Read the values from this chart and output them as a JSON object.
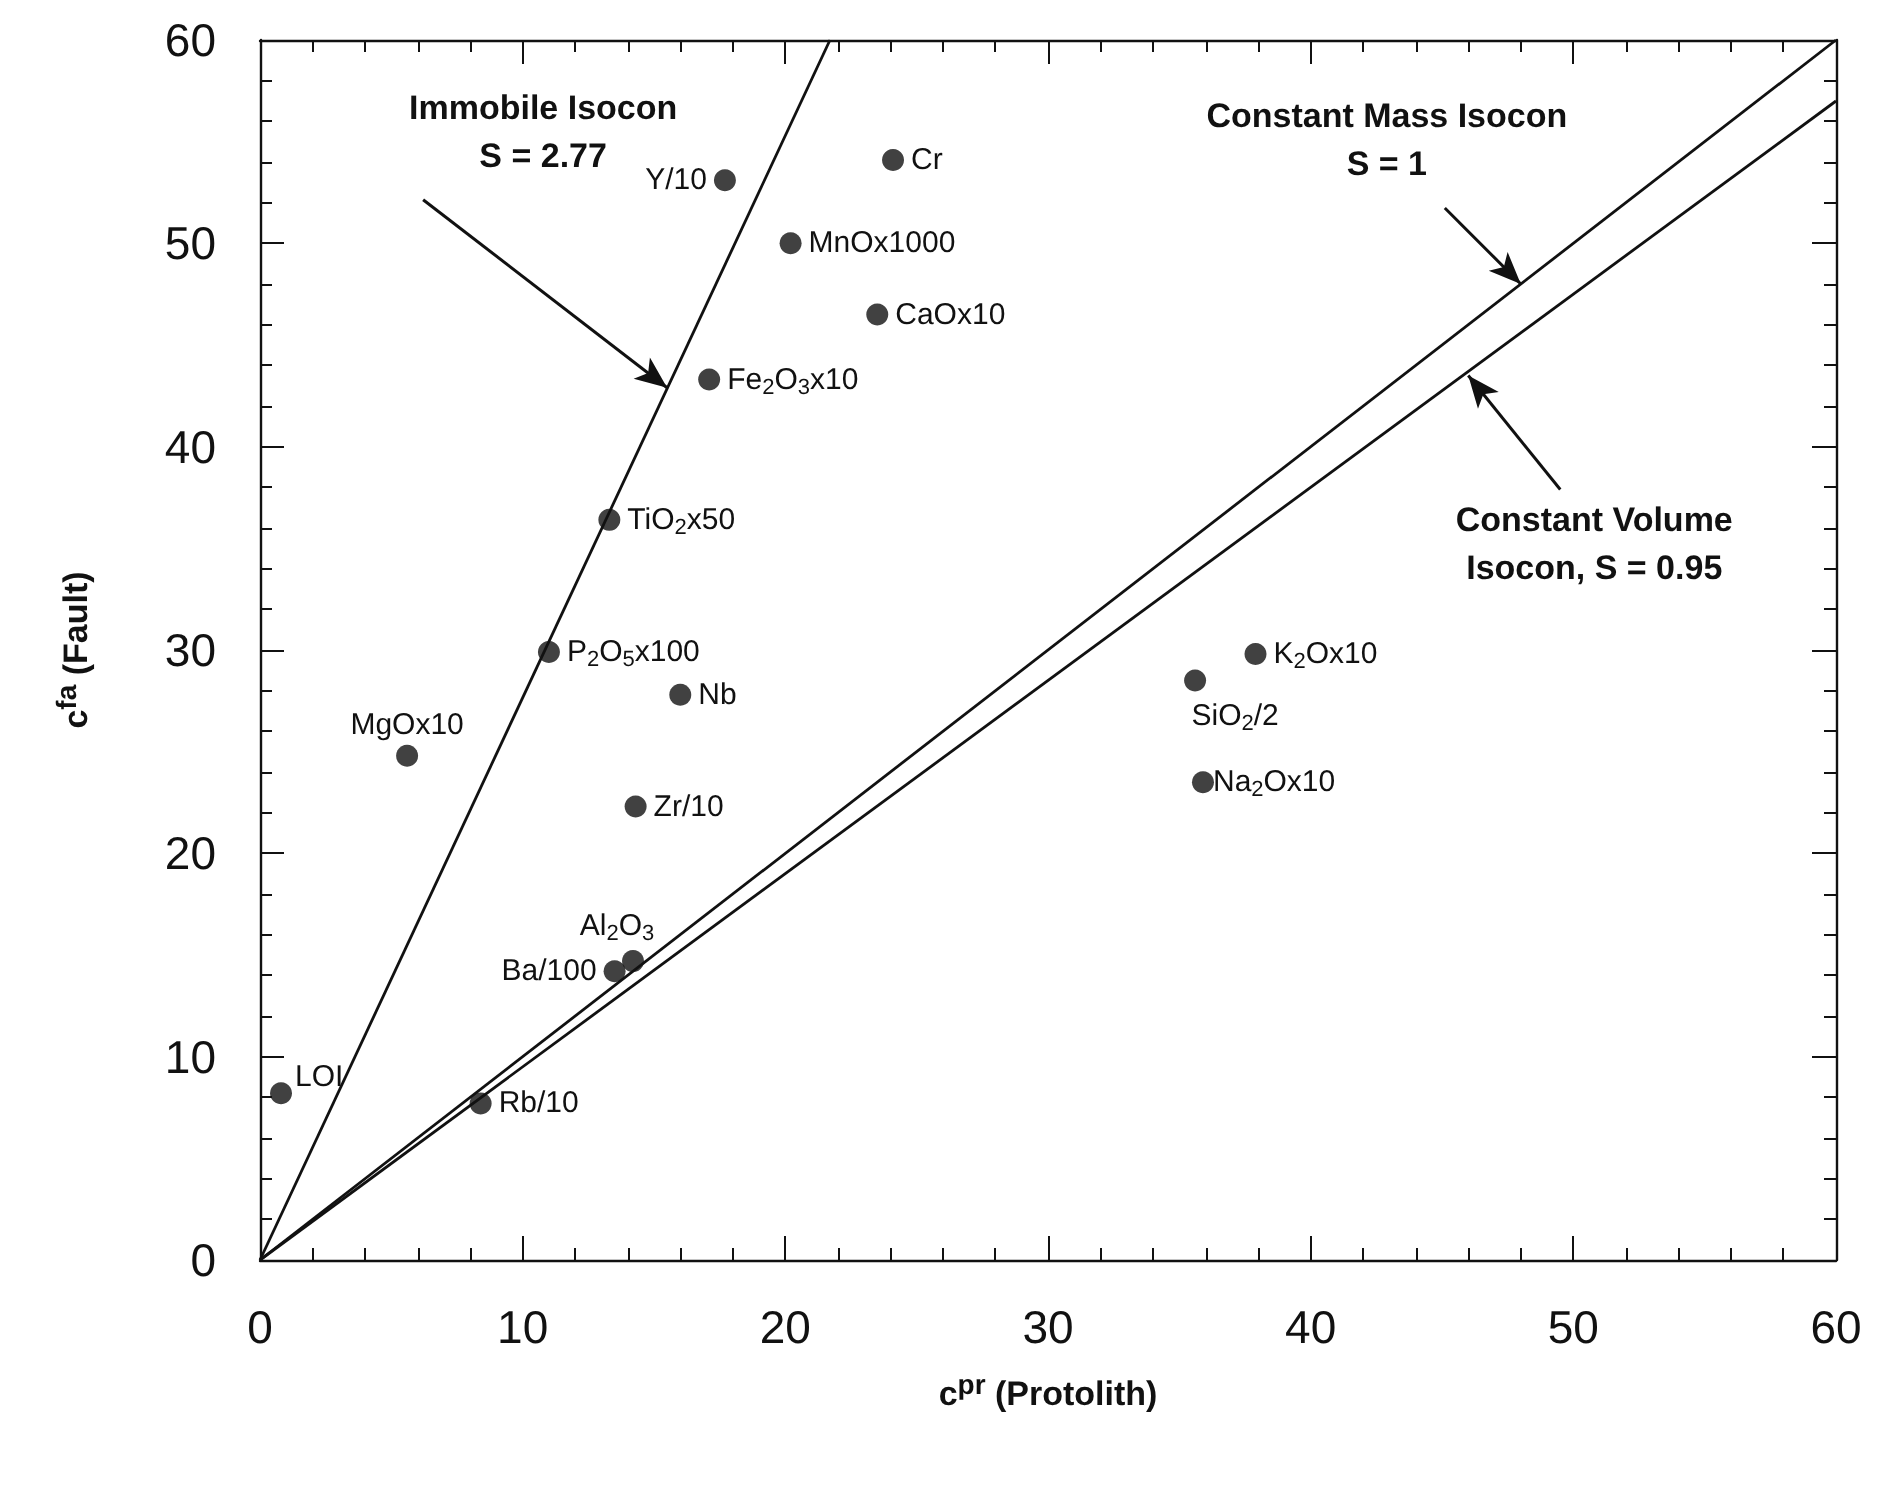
{
  "chart_data": {
    "type": "scatter",
    "xlabel": "c$^{pr}$ (Protolith)",
    "ylabel": "c$^{fa}$ (Fault)",
    "xlim": [
      0,
      60
    ],
    "ylim": [
      0,
      60
    ],
    "xticks": [
      0,
      10,
      20,
      30,
      40,
      50,
      60
    ],
    "yticks": [
      0,
      10,
      20,
      30,
      40,
      50,
      60
    ],
    "marker": "circle",
    "series": [
      {
        "color": "#111111",
        "x": [
          17.7,
          24.1,
          20.2,
          23.5,
          17.1,
          13.3,
          11.0,
          16.0,
          5.6,
          14.3,
          14.2,
          13.5,
          0.8,
          8.4,
          37.9,
          35.6,
          35.9
        ],
        "values": [
          53.1,
          54.1,
          50.0,
          46.5,
          43.3,
          36.4,
          29.9,
          27.8,
          24.8,
          22.3,
          14.7,
          14.2,
          8.2,
          7.7,
          29.8,
          28.5,
          23.5
        ]
      },
      {
        "type": "line",
        "color": "#111111",
        "marker": "none",
        "x": [
          0,
          21.7
        ],
        "values": [
          0,
          60
        ]
      },
      {
        "type": "line",
        "color": "#111111",
        "marker": "none",
        "x": [
          0,
          60
        ],
        "values": [
          0,
          60
        ]
      },
      {
        "type": "line",
        "color": "#111111",
        "marker": "none",
        "x": [
          0,
          60
        ],
        "values": [
          0,
          57
        ]
      }
    ],
    "annotations": [
      {
        "text": "Y/10",
        "x": 17.7,
        "y": 53.1
      },
      {
        "text": "Cr",
        "x": 24.1,
        "y": 54.1
      },
      {
        "text": "MnOx1000",
        "x": 20.2,
        "y": 50.0
      },
      {
        "text": "CaOx10",
        "x": 23.5,
        "y": 46.5
      },
      {
        "text": "Fe$_{2}$O$_{3}$x10",
        "x": 17.1,
        "y": 43.3
      },
      {
        "text": "TiO$_{2}$x50",
        "x": 13.3,
        "y": 36.4
      },
      {
        "text": "P$_{2}$O$_{5}$x100",
        "x": 11.0,
        "y": 29.9
      },
      {
        "text": "Nb",
        "x": 16.0,
        "y": 27.8
      },
      {
        "text": "MgOx10",
        "x": 5.6,
        "y": 24.8
      },
      {
        "text": "Zr/10",
        "x": 14.3,
        "y": 22.3
      },
      {
        "text": "Al$_{2}$O$_{3}$",
        "x": 14.2,
        "y": 14.7
      },
      {
        "text": "Ba/100",
        "x": 13.5,
        "y": 14.2
      },
      {
        "text": "LOI",
        "x": 0.8,
        "y": 8.2
      },
      {
        "text": "Rb/10",
        "x": 8.4,
        "y": 7.7
      },
      {
        "text": "K$_{2}$Ox10",
        "x": 37.9,
        "y": 29.8
      },
      {
        "text": "SiO$_{2}$/2",
        "x": 35.6,
        "y": 28.5
      },
      {
        "text": "Na$_{2}$Ox10",
        "x": 35.9,
        "y": 23.5
      },
      {
        "text": "Immobile Isocon\nS = 2.77",
        "x": 15.5,
        "y": 42.9
      },
      {
        "text": "Constant Mass Isocon\nS = 1",
        "x": 48,
        "y": 48
      },
      {
        "text": "Constant Volume\nIsocon, S = 0.95",
        "x": 46,
        "y": 43.5
      }
    ]
  }
}
